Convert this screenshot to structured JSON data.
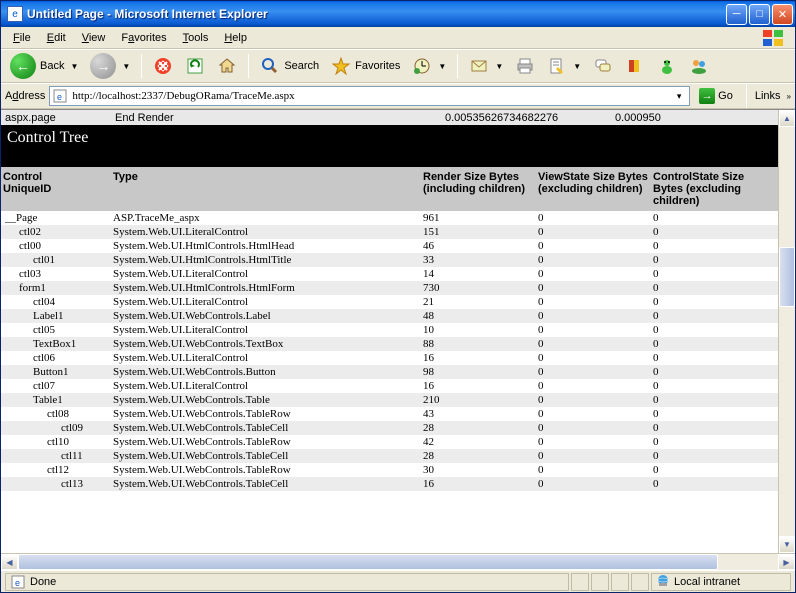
{
  "window": {
    "title": "Untitled Page - Microsoft Internet Explorer"
  },
  "menu": {
    "file": "File",
    "edit": "Edit",
    "view": "View",
    "favorites": "Favorites",
    "tools": "Tools",
    "help": "Help"
  },
  "toolbar": {
    "back": "Back",
    "search": "Search",
    "favorites": "Favorites"
  },
  "address": {
    "label": "Address",
    "url": "http://localhost:2337/DebugORama/TraceMe.aspx",
    "go": "Go",
    "links": "Links"
  },
  "trace_top": {
    "rows": [
      {
        "c1": "aspx.page",
        "c2": "End Render",
        "c3": "0.00535626734682276",
        "c4": "0.000950"
      }
    ]
  },
  "section_title": "Control Tree",
  "columns": {
    "c1a": "Control",
    "c1b": "UniqueID",
    "c2": "Type",
    "c3": "Render Size Bytes (including children)",
    "c4": "ViewState Size Bytes (excluding children)",
    "c5": "ControlState Size Bytes (excluding children)"
  },
  "rows": [
    {
      "indent": 0,
      "id": "__Page",
      "type": "ASP.TraceMe_aspx",
      "render": "961",
      "vs": "0",
      "cs": "0"
    },
    {
      "indent": 1,
      "id": "ctl02",
      "type": "System.Web.UI.LiteralControl",
      "render": "151",
      "vs": "0",
      "cs": "0"
    },
    {
      "indent": 1,
      "id": "ctl00",
      "type": "System.Web.UI.HtmlControls.HtmlHead",
      "render": "46",
      "vs": "0",
      "cs": "0"
    },
    {
      "indent": 2,
      "id": "ctl01",
      "type": "System.Web.UI.HtmlControls.HtmlTitle",
      "render": "33",
      "vs": "0",
      "cs": "0"
    },
    {
      "indent": 1,
      "id": "ctl03",
      "type": "System.Web.UI.LiteralControl",
      "render": "14",
      "vs": "0",
      "cs": "0"
    },
    {
      "indent": 1,
      "id": "form1",
      "type": "System.Web.UI.HtmlControls.HtmlForm",
      "render": "730",
      "vs": "0",
      "cs": "0"
    },
    {
      "indent": 2,
      "id": "ctl04",
      "type": "System.Web.UI.LiteralControl",
      "render": "21",
      "vs": "0",
      "cs": "0"
    },
    {
      "indent": 2,
      "id": "Label1",
      "type": "System.Web.UI.WebControls.Label",
      "render": "48",
      "vs": "0",
      "cs": "0"
    },
    {
      "indent": 2,
      "id": "ctl05",
      "type": "System.Web.UI.LiteralControl",
      "render": "10",
      "vs": "0",
      "cs": "0"
    },
    {
      "indent": 2,
      "id": "TextBox1",
      "type": "System.Web.UI.WebControls.TextBox",
      "render": "88",
      "vs": "0",
      "cs": "0"
    },
    {
      "indent": 2,
      "id": "ctl06",
      "type": "System.Web.UI.LiteralControl",
      "render": "16",
      "vs": "0",
      "cs": "0"
    },
    {
      "indent": 2,
      "id": "Button1",
      "type": "System.Web.UI.WebControls.Button",
      "render": "98",
      "vs": "0",
      "cs": "0"
    },
    {
      "indent": 2,
      "id": "ctl07",
      "type": "System.Web.UI.LiteralControl",
      "render": "16",
      "vs": "0",
      "cs": "0"
    },
    {
      "indent": 2,
      "id": "Table1",
      "type": "System.Web.UI.WebControls.Table",
      "render": "210",
      "vs": "0",
      "cs": "0"
    },
    {
      "indent": 3,
      "id": "ctl08",
      "type": "System.Web.UI.WebControls.TableRow",
      "render": "43",
      "vs": "0",
      "cs": "0"
    },
    {
      "indent": 4,
      "id": "ctl09",
      "type": "System.Web.UI.WebControls.TableCell",
      "render": "28",
      "vs": "0",
      "cs": "0"
    },
    {
      "indent": 3,
      "id": "ctl10",
      "type": "System.Web.UI.WebControls.TableRow",
      "render": "42",
      "vs": "0",
      "cs": "0"
    },
    {
      "indent": 4,
      "id": "ctl11",
      "type": "System.Web.UI.WebControls.TableCell",
      "render": "28",
      "vs": "0",
      "cs": "0"
    },
    {
      "indent": 3,
      "id": "ctl12",
      "type": "System.Web.UI.WebControls.TableRow",
      "render": "30",
      "vs": "0",
      "cs": "0"
    },
    {
      "indent": 4,
      "id": "ctl13",
      "type": "System.Web.UI.WebControls.TableCell",
      "render": "16",
      "vs": "0",
      "cs": "0"
    }
  ],
  "status": {
    "text": "Done",
    "zone": "Local intranet"
  }
}
